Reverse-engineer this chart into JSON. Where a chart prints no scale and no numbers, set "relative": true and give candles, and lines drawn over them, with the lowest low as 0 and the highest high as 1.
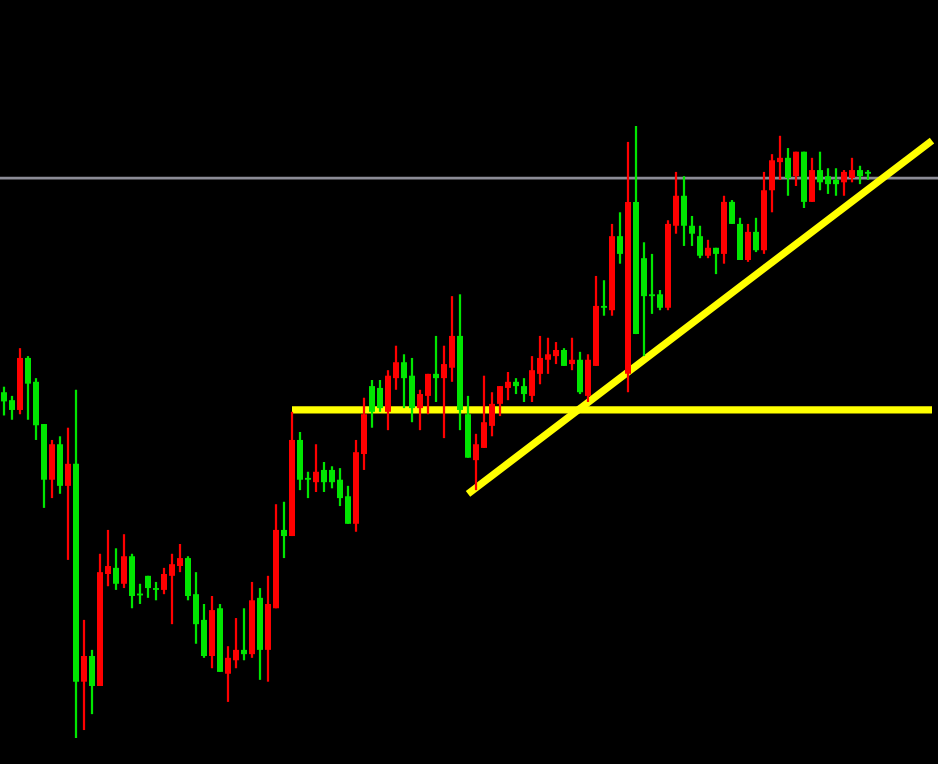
{
  "chart_data": {
    "type": "candlestick",
    "relative": true,
    "categories": [
      null,
      null,
      null,
      null,
      null,
      null,
      null,
      null,
      null,
      null,
      null,
      null,
      null,
      null,
      null,
      null,
      null,
      null,
      null,
      null,
      null,
      null,
      null,
      null,
      null,
      null,
      null,
      null,
      null,
      null,
      null,
      null,
      null,
      null,
      null,
      null,
      null,
      null,
      null,
      null,
      null,
      null,
      null,
      null,
      null,
      null,
      null,
      null,
      null,
      null,
      null,
      null,
      null,
      null,
      null,
      null,
      null,
      null,
      null,
      null,
      null,
      null,
      null,
      null,
      null,
      null,
      null,
      null,
      null,
      null,
      null,
      null,
      null,
      null,
      null,
      null,
      null,
      null,
      null,
      null,
      null,
      null,
      null,
      null,
      null,
      null,
      null,
      null,
      null,
      null,
      null,
      null,
      null,
      null,
      null,
      null,
      null,
      null,
      null,
      null,
      null,
      null,
      null,
      null,
      null,
      null,
      null,
      null,
      null,
      null,
      null,
      null,
      null,
      null,
      null,
      null,
      null
    ],
    "ohlc": [
      [
        0.55,
        0.574,
        0.527,
        0.565
      ],
      [
        0.536,
        0.559,
        0.52,
        0.552
      ],
      [
        0.621,
        0.637,
        0.529,
        0.536
      ],
      [
        0.579,
        0.624,
        0.52,
        0.621
      ],
      [
        0.511,
        0.588,
        0.487,
        0.582
      ],
      [
        0.422,
        0.513,
        0.376,
        0.513
      ],
      [
        0.48,
        0.487,
        0.392,
        0.422
      ],
      [
        0.412,
        0.493,
        0.399,
        0.48
      ],
      [
        0.448,
        0.507,
        0.291,
        0.412
      ],
      [
        0.092,
        0.569,
        0,
        0.448
      ],
      [
        0.134,
        0.193,
        0.013,
        0.092
      ],
      [
        0.085,
        0.144,
        0.039,
        0.134
      ],
      [
        0.271,
        0.301,
        0.085,
        0.085
      ],
      [
        0.281,
        0.34,
        0.248,
        0.268
      ],
      [
        0.252,
        0.31,
        0.242,
        0.278
      ],
      [
        0.297,
        0.333,
        0.245,
        0.252
      ],
      [
        0.232,
        0.301,
        0.212,
        0.297
      ],
      [
        0.233,
        0.252,
        0.219,
        0.236
      ],
      [
        0.245,
        0.265,
        0.229,
        0.265
      ],
      [
        0.242,
        0.255,
        0.225,
        0.245
      ],
      [
        0.268,
        0.278,
        0.235,
        0.242
      ],
      [
        0.284,
        0.301,
        0.186,
        0.265
      ],
      [
        0.294,
        0.317,
        0.271,
        0.281
      ],
      [
        0.232,
        0.297,
        0.225,
        0.294
      ],
      [
        0.186,
        0.271,
        0.154,
        0.235
      ],
      [
        0.134,
        0.219,
        0.131,
        0.193
      ],
      [
        0.209,
        0.232,
        0.114,
        0.134
      ],
      [
        0.108,
        0.219,
        0.108,
        0.212
      ],
      [
        0.131,
        0.15,
        0.059,
        0.105
      ],
      [
        0.144,
        0.196,
        0.114,
        0.127
      ],
      [
        0.137,
        0.212,
        0.127,
        0.144
      ],
      [
        0.225,
        0.255,
        0.131,
        0.137
      ],
      [
        0.144,
        0.245,
        0.095,
        0.229
      ],
      [
        0.219,
        0.265,
        0.092,
        0.144
      ],
      [
        0.34,
        0.382,
        0.212,
        0.212
      ],
      [
        0.33,
        0.386,
        0.294,
        0.34
      ],
      [
        0.487,
        0.533,
        0.33,
        0.33
      ],
      [
        0.422,
        0.5,
        0.405,
        0.487
      ],
      [
        0.422,
        0.435,
        0.392,
        0.425
      ],
      [
        0.435,
        0.48,
        0.402,
        0.418
      ],
      [
        0.418,
        0.451,
        0.402,
        0.438
      ],
      [
        0.418,
        0.444,
        0.408,
        0.438
      ],
      [
        0.392,
        0.441,
        0.379,
        0.422
      ],
      [
        0.35,
        0.412,
        0.35,
        0.395
      ],
      [
        0.467,
        0.487,
        0.337,
        0.35
      ],
      [
        0.529,
        0.556,
        0.438,
        0.464
      ],
      [
        0.533,
        0.585,
        0.507,
        0.575
      ],
      [
        0.539,
        0.585,
        0.533,
        0.572
      ],
      [
        0.592,
        0.601,
        0.503,
        0.533
      ],
      [
        0.614,
        0.641,
        0.569,
        0.588
      ],
      [
        0.588,
        0.627,
        0.539,
        0.614
      ],
      [
        0.539,
        0.621,
        0.516,
        0.592
      ],
      [
        0.562,
        0.569,
        0.503,
        0.539
      ],
      [
        0.595,
        0.595,
        0.529,
        0.559
      ],
      [
        0.588,
        0.657,
        0.549,
        0.595
      ],
      [
        0.611,
        0.641,
        0.49,
        0.588
      ],
      [
        0.657,
        0.722,
        0.582,
        0.605
      ],
      [
        0.536,
        0.725,
        0.503,
        0.657
      ],
      [
        0.458,
        0.559,
        0.458,
        0.529
      ],
      [
        0.48,
        0.497,
        0.405,
        0.454
      ],
      [
        0.516,
        0.592,
        0.474,
        0.474
      ],
      [
        0.546,
        0.565,
        0.493,
        0.51
      ],
      [
        0.575,
        0.575,
        0.526,
        0.546
      ],
      [
        0.582,
        0.598,
        0.552,
        0.572
      ],
      [
        0.575,
        0.588,
        0.562,
        0.582
      ],
      [
        0.562,
        0.588,
        0.549,
        0.575
      ],
      [
        0.601,
        0.624,
        0.549,
        0.559
      ],
      [
        0.621,
        0.657,
        0.578,
        0.595
      ],
      [
        0.627,
        0.654,
        0.595,
        0.618
      ],
      [
        0.634,
        0.647,
        0.611,
        0.624
      ],
      [
        0.608,
        0.637,
        0.608,
        0.634
      ],
      [
        0.618,
        0.654,
        0.601,
        0.611
      ],
      [
        0.565,
        0.631,
        0.562,
        0.618
      ],
      [
        0.618,
        0.627,
        0.549,
        0.559
      ],
      [
        0.706,
        0.755,
        0.608,
        0.608
      ],
      [
        0.703,
        0.748,
        0.69,
        0.706
      ],
      [
        0.82,
        0.84,
        0.69,
        0.699
      ],
      [
        0.791,
        0.859,
        0.775,
        0.82
      ],
      [
        0.876,
        0.974,
        0.565,
        0.595
      ],
      [
        0.66,
        1,
        0.66,
        0.876
      ],
      [
        0.722,
        0.81,
        0.624,
        0.784
      ],
      [
        0.722,
        0.791,
        0.693,
        0.725
      ],
      [
        0.703,
        0.732,
        0.699,
        0.725
      ],
      [
        0.84,
        0.846,
        0.699,
        0.703
      ],
      [
        0.886,
        0.925,
        0.824,
        0.837
      ],
      [
        0.837,
        0.918,
        0.804,
        0.886
      ],
      [
        0.824,
        0.853,
        0.804,
        0.837
      ],
      [
        0.788,
        0.837,
        0.784,
        0.82
      ],
      [
        0.801,
        0.814,
        0.784,
        0.788
      ],
      [
        0.791,
        0.801,
        0.758,
        0.801
      ],
      [
        0.876,
        0.886,
        0.775,
        0.791
      ],
      [
        0.84,
        0.879,
        0.84,
        0.876
      ],
      [
        0.781,
        0.85,
        0.781,
        0.84
      ],
      [
        0.827,
        0.84,
        0.778,
        0.781
      ],
      [
        0.797,
        0.85,
        0.794,
        0.827
      ],
      [
        0.895,
        0.925,
        0.791,
        0.797
      ],
      [
        0.944,
        0.954,
        0.859,
        0.895
      ],
      [
        0.948,
        0.984,
        0.912,
        0.941
      ],
      [
        0.915,
        0.964,
        0.886,
        0.948
      ],
      [
        0.958,
        0.958,
        0.902,
        0.918
      ],
      [
        0.876,
        0.958,
        0.866,
        0.958
      ],
      [
        0.928,
        0.948,
        0.876,
        0.876
      ],
      [
        0.908,
        0.958,
        0.895,
        0.928
      ],
      [
        0.905,
        0.931,
        0.889,
        0.918
      ],
      [
        0.905,
        0.931,
        0.886,
        0.912
      ],
      [
        0.925,
        0.928,
        0.886,
        0.908
      ],
      [
        0.928,
        0.948,
        0.908,
        0.915
      ],
      [
        0.918,
        0.935,
        0.905,
        0.928
      ],
      [
        0.922,
        0.928,
        0.912,
        0.925
      ],
      null,
      null,
      null,
      null,
      null,
      null,
      null,
      null
    ],
    "colors": [
      "#00e600",
      "#00e600",
      "#ff0000",
      "#00e600",
      "#00e600",
      "#00e600",
      "#ff0000",
      "#00e600",
      "#ff0000",
      "#00e600",
      "#ff0000",
      "#00e600",
      "#ff0000",
      "#ff0000",
      "#00e600",
      "#ff0000",
      "#00e600",
      "#00e600",
      "#00e600",
      "#00e600",
      "#ff0000",
      "#ff0000",
      "#ff0000",
      "#00e600",
      "#00e600",
      "#00e600",
      "#ff0000",
      "#00e600",
      "#ff0000",
      "#ff0000",
      "#00e600",
      "#ff0000",
      "#00e600",
      "#ff0000",
      "#ff0000",
      "#00e600",
      "#ff0000",
      "#00e600",
      "#00e600",
      "#ff0000",
      "#00e600",
      "#00e600",
      "#00e600",
      "#00e600",
      "#ff0000",
      "#ff0000",
      "#00e600",
      "#00e600",
      "#ff0000",
      "#ff0000",
      "#00e600",
      "#00e600",
      "#ff0000",
      "#ff0000",
      "#00e600",
      "#ff0000",
      "#ff0000",
      "#00e600",
      "#00e600",
      "#ff0000",
      "#ff0000",
      "#ff0000",
      "#ff0000",
      "#ff0000",
      "#00e600",
      "#00e600",
      "#ff0000",
      "#ff0000",
      "#ff0000",
      "#ff0000",
      "#00e600",
      "#ff0000",
      "#00e600",
      "#ff0000",
      "#ff0000",
      "#00e600",
      "#ff0000",
      "#00e600",
      "#ff0000",
      "#00e600",
      "#00e600",
      "#00e600",
      "#00e600",
      "#ff0000",
      "#ff0000",
      "#00e600",
      "#00e600",
      "#00e600",
      "#ff0000",
      "#00e600",
      "#ff0000",
      "#00e600",
      "#00e600",
      "#ff0000",
      "#00e600",
      "#ff0000",
      "#ff0000",
      "#ff0000",
      "#00e600",
      "#ff0000",
      "#00e600",
      "#ff0000",
      "#00e600",
      "#00e600",
      "#00e600",
      "#ff0000",
      "#ff0000",
      "#00e600",
      "#00e600",
      null,
      null,
      null,
      null,
      null,
      null,
      null,
      null
    ],
    "series": [
      {
        "type": "line",
        "color": "#ffff00",
        "values": [
          null,
          null,
          null,
          null,
          null,
          null,
          null,
          null,
          null,
          null,
          null,
          null,
          null,
          null,
          null,
          null,
          null,
          null,
          null,
          null,
          null,
          null,
          null,
          null,
          null,
          null,
          null,
          null,
          null,
          null,
          null,
          null,
          null,
          null,
          null,
          null,
          0.536,
          null,
          null,
          null,
          null,
          null,
          null,
          null,
          null,
          null,
          null,
          null,
          null,
          null,
          null,
          null,
          null,
          null,
          null,
          null,
          null,
          null,
          null,
          null,
          null,
          null,
          null,
          null,
          null,
          null,
          null,
          null,
          null,
          null,
          null,
          null,
          null,
          null,
          null,
          null,
          null,
          null,
          null,
          null,
          null,
          null,
          null,
          null,
          null,
          null,
          null,
          null,
          null,
          null,
          null,
          null,
          null,
          null,
          null,
          null,
          null,
          null,
          null,
          null,
          null,
          null,
          null,
          null,
          null,
          null,
          null,
          null,
          null,
          null,
          null,
          null,
          null,
          null,
          null,
          null,
          0.536
        ]
      },
      {
        "type": "line",
        "color": "#ffff00",
        "values": [
          null,
          null,
          null,
          null,
          null,
          null,
          null,
          null,
          null,
          null,
          null,
          null,
          null,
          null,
          null,
          null,
          null,
          null,
          null,
          null,
          null,
          null,
          null,
          null,
          null,
          null,
          null,
          null,
          null,
          null,
          null,
          null,
          null,
          null,
          null,
          null,
          null,
          null,
          null,
          null,
          null,
          null,
          null,
          null,
          null,
          null,
          null,
          null,
          null,
          null,
          null,
          null,
          null,
          null,
          null,
          null,
          null,
          null,
          0.399,
          null,
          null,
          null,
          null,
          null,
          null,
          null,
          null,
          null,
          null,
          null,
          null,
          null,
          null,
          null,
          null,
          null,
          null,
          null,
          null,
          null,
          null,
          null,
          null,
          null,
          null,
          null,
          null,
          null,
          null,
          null,
          null,
          null,
          null,
          null,
          null,
          null,
          null,
          null,
          null,
          null,
          null,
          null,
          null,
          null,
          null,
          null,
          null,
          null,
          null,
          null,
          null,
          null,
          null,
          null,
          null,
          null,
          0.976
        ]
      }
    ],
    "ref_lines": [
      {
        "axis": "y",
        "value": 0.915,
        "color": "#8c8c96"
      }
    ]
  }
}
